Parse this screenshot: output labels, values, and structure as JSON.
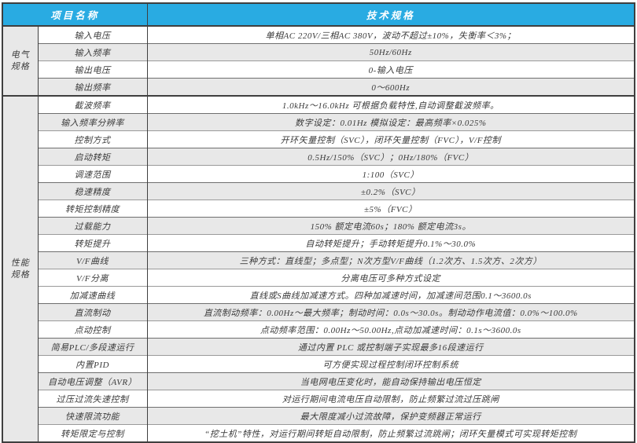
{
  "table": {
    "header": {
      "item_col_label": "项目名称",
      "spec_col_label": "技术规格"
    },
    "colors": {
      "header_bg": "#29abe2",
      "header_text": "#ffffff",
      "stripe_bg": "#e8e8e8",
      "border_dark": "#3f3f3f",
      "border_light": "#9a9a9a",
      "text": "#3b3b3b"
    },
    "groups": [
      {
        "name": "电气\n规格",
        "rows": [
          {
            "item": "输入电压",
            "value": "单相AC 220V/三相AC 380V，波动不超过±10%，失衡率＜3%；",
            "shaded": false
          },
          {
            "item": "输入频率",
            "value": "50Hz/60Hz",
            "shaded": true
          },
          {
            "item": "输出电压",
            "value": "0-输入电压",
            "shaded": false
          },
          {
            "item": "输出频率",
            "value": "0～600Hz",
            "shaded": true
          }
        ]
      },
      {
        "name": "性能\n规格",
        "rows": [
          {
            "item": "截波频率",
            "value": "1.0kHz～16.0kHz 可根据负载特性,自动调整截波频率。",
            "shaded": false
          },
          {
            "item": "输入频率分辨率",
            "value": "数字设定：0.01Hz 模拟设定：最高频率×0.025%",
            "shaded": true
          },
          {
            "item": "控制方式",
            "value": "开环矢量控制（SVC），闭环矢量控制（FVC），V/F控制",
            "shaded": false
          },
          {
            "item": "启动转矩",
            "value": "0.5Hz/150%（SVC）；0Hz/180%（FVC）",
            "shaded": true
          },
          {
            "item": "调速范围",
            "value": "1:100（SVC）",
            "shaded": false
          },
          {
            "item": "稳速精度",
            "value": "±0.2%（SVC）",
            "shaded": true
          },
          {
            "item": "转矩控制精度",
            "value": "±5%（FVC）",
            "shaded": false
          },
          {
            "item": "过载能力",
            "value": "150% 额定电流60s；180% 额定电流3s。",
            "shaded": true
          },
          {
            "item": "转矩提升",
            "value": "自动转矩提升；手动转矩提升0.1%～30.0%",
            "shaded": false
          },
          {
            "item": "V/F曲线",
            "value": "三种方式：直线型；多点型；N次方型V/F曲线（1.2次方、1.5次方、2次方）",
            "shaded": true
          },
          {
            "item": "V/F分离",
            "value": "分离电压可多种方式设定",
            "shaded": false
          },
          {
            "item": "加减速曲线",
            "value": "直线或S曲线加减速方式。四种加减速时间，加减速间范围0.1～3600.0s",
            "shaded": false
          },
          {
            "item": "直流制动",
            "value": "直流制动频率：0.00Hz～最大频率；制动时间：0.0s～30.0s。制动动作电流值：0.0%～100.0%",
            "shaded": true
          },
          {
            "item": "点动控制",
            "value": "点动频率范围：0.00Hz～50.00Hz,点动加减速时间：0.1s～3600.0s",
            "shaded": false
          },
          {
            "item": "简易PLC/多段速运行",
            "value": "通过内置 PLC 或控制端子实现最多16段速运行",
            "shaded": true
          },
          {
            "item": "内置PID",
            "value": "可方便实现过程控制闭环控制系统",
            "shaded": false
          },
          {
            "item": "自动电压调整（AVR）",
            "value": "当电网电压变化时，能自动保持输出电压恒定",
            "shaded": true
          },
          {
            "item": "过压过流失速控制",
            "value": "对运行期间电流电压自动限制，防止频繁过流过压跳闸",
            "shaded": false
          },
          {
            "item": "快速限流功能",
            "value": "最大限度减小过流故障，保护变频器正常运行",
            "shaded": true
          },
          {
            "item": "转矩限定与控制",
            "value": "“挖土机”特性，对运行期间转矩自动限制，防止频繁过流跳闸；闭环矢量模式可实现转矩控制",
            "shaded": false
          }
        ]
      }
    ]
  }
}
